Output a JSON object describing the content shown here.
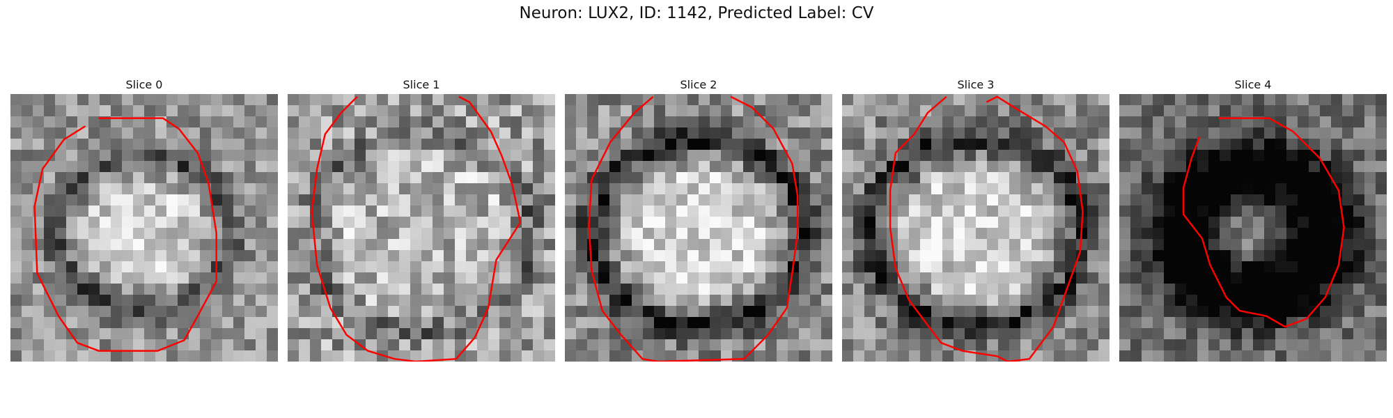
{
  "figure": {
    "title": "Neuron: LUX2, ID: 1142, Predicted Label: CV"
  },
  "contour_color": "#ff0000",
  "slices": [
    {
      "title": "Slice 0",
      "pattern": "thin-ring",
      "seed": 11,
      "contour": [
        [
          0.33,
          0.09
        ],
        [
          0.57,
          0.09
        ],
        [
          0.63,
          0.13
        ],
        [
          0.7,
          0.22
        ],
        [
          0.74,
          0.33
        ],
        [
          0.77,
          0.52
        ],
        [
          0.77,
          0.7
        ],
        [
          0.7,
          0.83
        ],
        [
          0.65,
          0.92
        ],
        [
          0.55,
          0.96
        ],
        [
          0.33,
          0.96
        ],
        [
          0.25,
          0.93
        ],
        [
          0.18,
          0.83
        ],
        [
          0.1,
          0.67
        ],
        [
          0.09,
          0.42
        ],
        [
          0.12,
          0.28
        ],
        [
          0.2,
          0.17
        ],
        [
          0.28,
          0.12
        ]
      ]
    },
    {
      "title": "Slice 1",
      "pattern": "faint-ring",
      "seed": 23,
      "contour": [
        [
          0.26,
          0.01
        ],
        [
          0.2,
          0.07
        ],
        [
          0.14,
          0.15
        ],
        [
          0.11,
          0.28
        ],
        [
          0.09,
          0.44
        ],
        [
          0.11,
          0.64
        ],
        [
          0.16,
          0.8
        ],
        [
          0.22,
          0.9
        ],
        [
          0.3,
          0.96
        ],
        [
          0.4,
          0.99
        ],
        [
          0.48,
          1.0
        ],
        [
          0.63,
          0.99
        ],
        [
          0.7,
          0.91
        ],
        [
          0.75,
          0.8
        ],
        [
          0.78,
          0.62
        ],
        [
          0.87,
          0.48
        ],
        [
          0.84,
          0.34
        ],
        [
          0.8,
          0.23
        ],
        [
          0.76,
          0.14
        ],
        [
          0.68,
          0.03
        ],
        [
          0.64,
          0.01
        ]
      ]
    },
    {
      "title": "Slice 2",
      "pattern": "ring",
      "seed": 37,
      "contour": [
        [
          0.33,
          0.01
        ],
        [
          0.26,
          0.07
        ],
        [
          0.17,
          0.18
        ],
        [
          0.1,
          0.32
        ],
        [
          0.09,
          0.49
        ],
        [
          0.1,
          0.66
        ],
        [
          0.14,
          0.81
        ],
        [
          0.21,
          0.9
        ],
        [
          0.29,
          0.99
        ],
        [
          0.35,
          1.0
        ],
        [
          0.67,
          0.99
        ],
        [
          0.76,
          0.9
        ],
        [
          0.83,
          0.8
        ],
        [
          0.85,
          0.67
        ],
        [
          0.87,
          0.52
        ],
        [
          0.87,
          0.38
        ],
        [
          0.85,
          0.26
        ],
        [
          0.78,
          0.13
        ],
        [
          0.7,
          0.05
        ],
        [
          0.62,
          0.01
        ]
      ]
    },
    {
      "title": "Slice 3",
      "pattern": "ring",
      "seed": 51,
      "contour": [
        [
          0.39,
          0.01
        ],
        [
          0.32,
          0.07
        ],
        [
          0.27,
          0.15
        ],
        [
          0.2,
          0.22
        ],
        [
          0.18,
          0.36
        ],
        [
          0.18,
          0.5
        ],
        [
          0.2,
          0.65
        ],
        [
          0.25,
          0.77
        ],
        [
          0.31,
          0.85
        ],
        [
          0.37,
          0.93
        ],
        [
          0.45,
          0.96
        ],
        [
          0.58,
          0.98
        ],
        [
          0.62,
          1.0
        ],
        [
          0.7,
          0.99
        ],
        [
          0.79,
          0.87
        ],
        [
          0.84,
          0.73
        ],
        [
          0.89,
          0.59
        ],
        [
          0.9,
          0.44
        ],
        [
          0.88,
          0.29
        ],
        [
          0.83,
          0.18
        ],
        [
          0.76,
          0.12
        ],
        [
          0.66,
          0.06
        ],
        [
          0.58,
          0.01
        ],
        [
          0.54,
          0.03
        ]
      ]
    },
    {
      "title": "Slice 4",
      "pattern": "dark-ring",
      "seed": 67,
      "contour": [
        [
          0.37,
          0.09
        ],
        [
          0.56,
          0.09
        ],
        [
          0.65,
          0.14
        ],
        [
          0.75,
          0.24
        ],
        [
          0.82,
          0.36
        ],
        [
          0.84,
          0.5
        ],
        [
          0.82,
          0.64
        ],
        [
          0.77,
          0.76
        ],
        [
          0.7,
          0.84
        ],
        [
          0.62,
          0.87
        ],
        [
          0.55,
          0.83
        ],
        [
          0.45,
          0.81
        ],
        [
          0.4,
          0.76
        ],
        [
          0.34,
          0.64
        ],
        [
          0.31,
          0.54
        ],
        [
          0.24,
          0.45
        ],
        [
          0.24,
          0.35
        ],
        [
          0.27,
          0.24
        ],
        [
          0.3,
          0.16
        ]
      ]
    }
  ]
}
